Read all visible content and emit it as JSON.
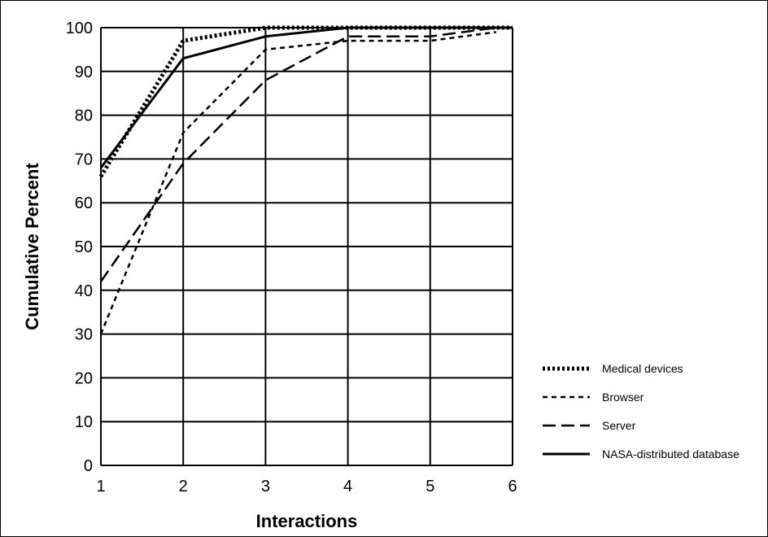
{
  "chart_data": {
    "type": "line",
    "title": "",
    "xlabel": "Interactions",
    "ylabel": "Cumulative Percent",
    "xlim": [
      1,
      6
    ],
    "ylim": [
      0,
      100
    ],
    "xticks": [
      1,
      2,
      3,
      4,
      5,
      6
    ],
    "yticks": [
      0,
      10,
      20,
      30,
      40,
      50,
      60,
      70,
      80,
      90,
      100
    ],
    "grid": true,
    "legend_position": "right",
    "series": [
      {
        "name": "Medical devices",
        "style": "dotted",
        "x": [
          1,
          2,
          3,
          4,
          5,
          6
        ],
        "y": [
          66,
          97,
          100,
          100,
          100,
          100
        ]
      },
      {
        "name": "Browser",
        "style": "short-dashed",
        "x": [
          1,
          2,
          3,
          4,
          5,
          5.8
        ],
        "y": [
          30,
          76,
          95,
          97,
          97,
          99
        ]
      },
      {
        "name": "Server",
        "style": "long-dashed",
        "x": [
          1,
          2,
          3,
          4,
          5,
          5.8
        ],
        "y": [
          42,
          69,
          88,
          98,
          98,
          100
        ]
      },
      {
        "name": "NASA-distributed database",
        "style": "solid",
        "x": [
          1,
          2,
          3,
          4,
          5,
          6
        ],
        "y": [
          68,
          93,
          98,
          100,
          100,
          100
        ]
      }
    ]
  }
}
